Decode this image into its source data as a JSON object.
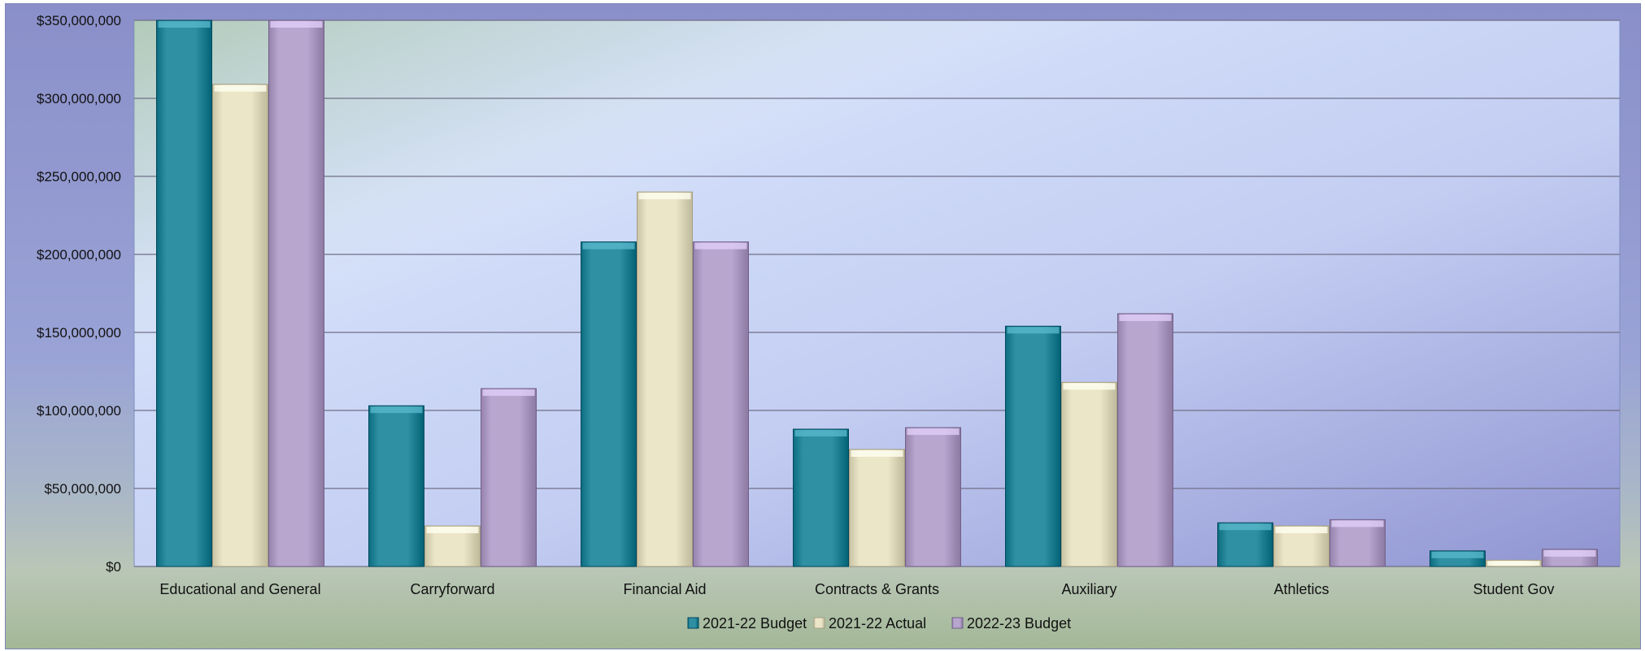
{
  "chart_data": {
    "type": "bar",
    "categories": [
      "Educational and General",
      "Carryforward",
      "Financial Aid",
      "Contracts & Grants",
      "Auxiliary",
      "Athletics",
      "Student Gov"
    ],
    "series": [
      {
        "name": "2021-22 Budget",
        "color": "#2f8fa3",
        "values": [
          350000000,
          103000000,
          208000000,
          88000000,
          154000000,
          28000000,
          10000000
        ]
      },
      {
        "name": "2021-22 Actual",
        "color": "#ece6c8",
        "values": [
          309000000,
          26000000,
          240000000,
          75000000,
          118000000,
          26000000,
          4000000
        ]
      },
      {
        "name": "2022-23 Budget",
        "color": "#b8a6cf",
        "values": [
          350000000,
          114000000,
          208000000,
          89000000,
          162000000,
          30000000,
          11000000
        ]
      }
    ],
    "ylim": [
      0,
      350000000
    ],
    "yticks": [
      0,
      50000000,
      100000000,
      150000000,
      200000000,
      250000000,
      300000000,
      350000000
    ],
    "ytick_labels": [
      "$0",
      "$50,000,000",
      "$100,000,000",
      "$150,000,000",
      "$200,000,000",
      "$250,000,000",
      "$300,000,000",
      "$350,000,000"
    ],
    "title": "",
    "xlabel": "",
    "ylabel": "",
    "grid": true,
    "legend_position": "bottom"
  }
}
